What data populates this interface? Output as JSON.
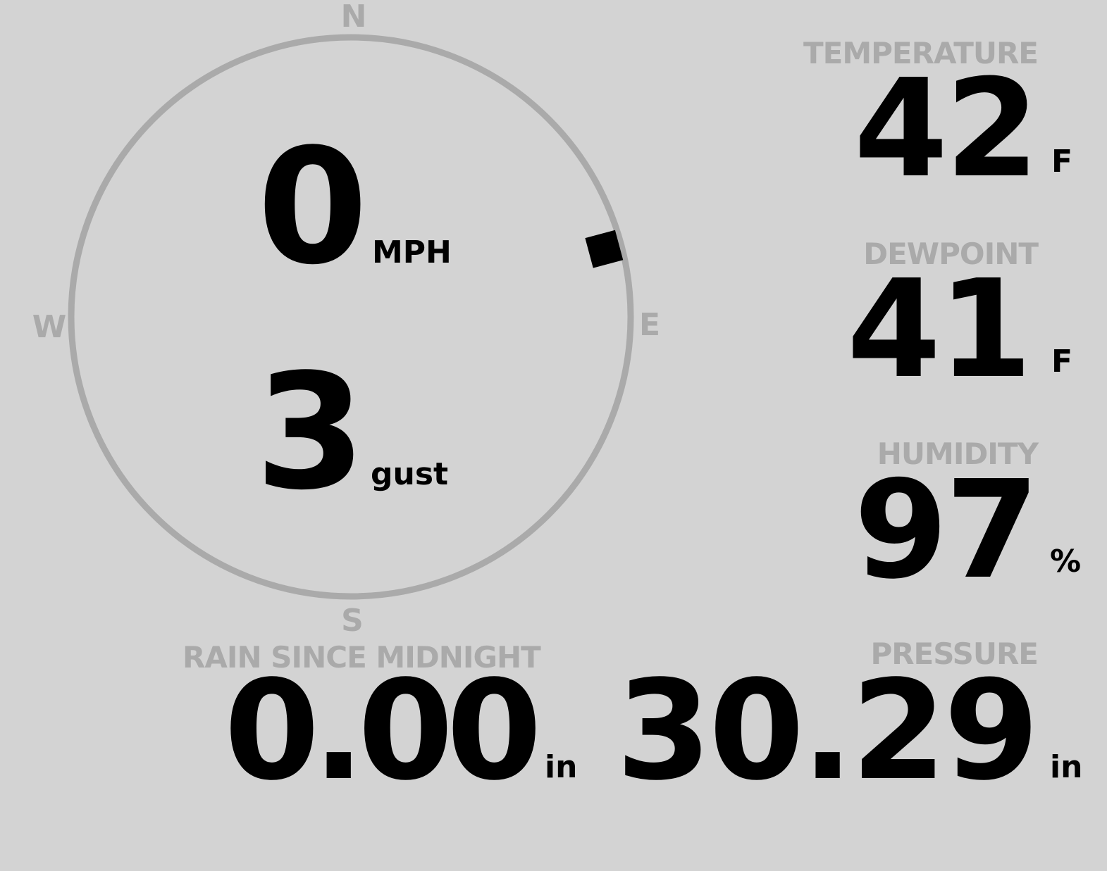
{
  "wind": {
    "speed": "0",
    "speed_unit": "MPH",
    "gust": "3",
    "gust_unit": "gust",
    "direction_degrees": 75,
    "compass": {
      "n": "N",
      "s": "S",
      "e": "E",
      "w": "W"
    }
  },
  "temperature": {
    "label": "TEMPERATURE",
    "value": "42",
    "unit": "F"
  },
  "dewpoint": {
    "label": "DEWPOINT",
    "value": "41",
    "unit": "F"
  },
  "humidity": {
    "label": "HUMIDITY",
    "value": "97",
    "unit": "%"
  },
  "rain": {
    "label": "RAIN SINCE MIDNIGHT",
    "value": "0.00",
    "unit": "in"
  },
  "pressure": {
    "label": "PRESSURE",
    "value": "30.29",
    "unit": "in"
  },
  "colors": {
    "background": "#d3d3d3",
    "label": "#aaaaaa",
    "value": "#000000"
  }
}
